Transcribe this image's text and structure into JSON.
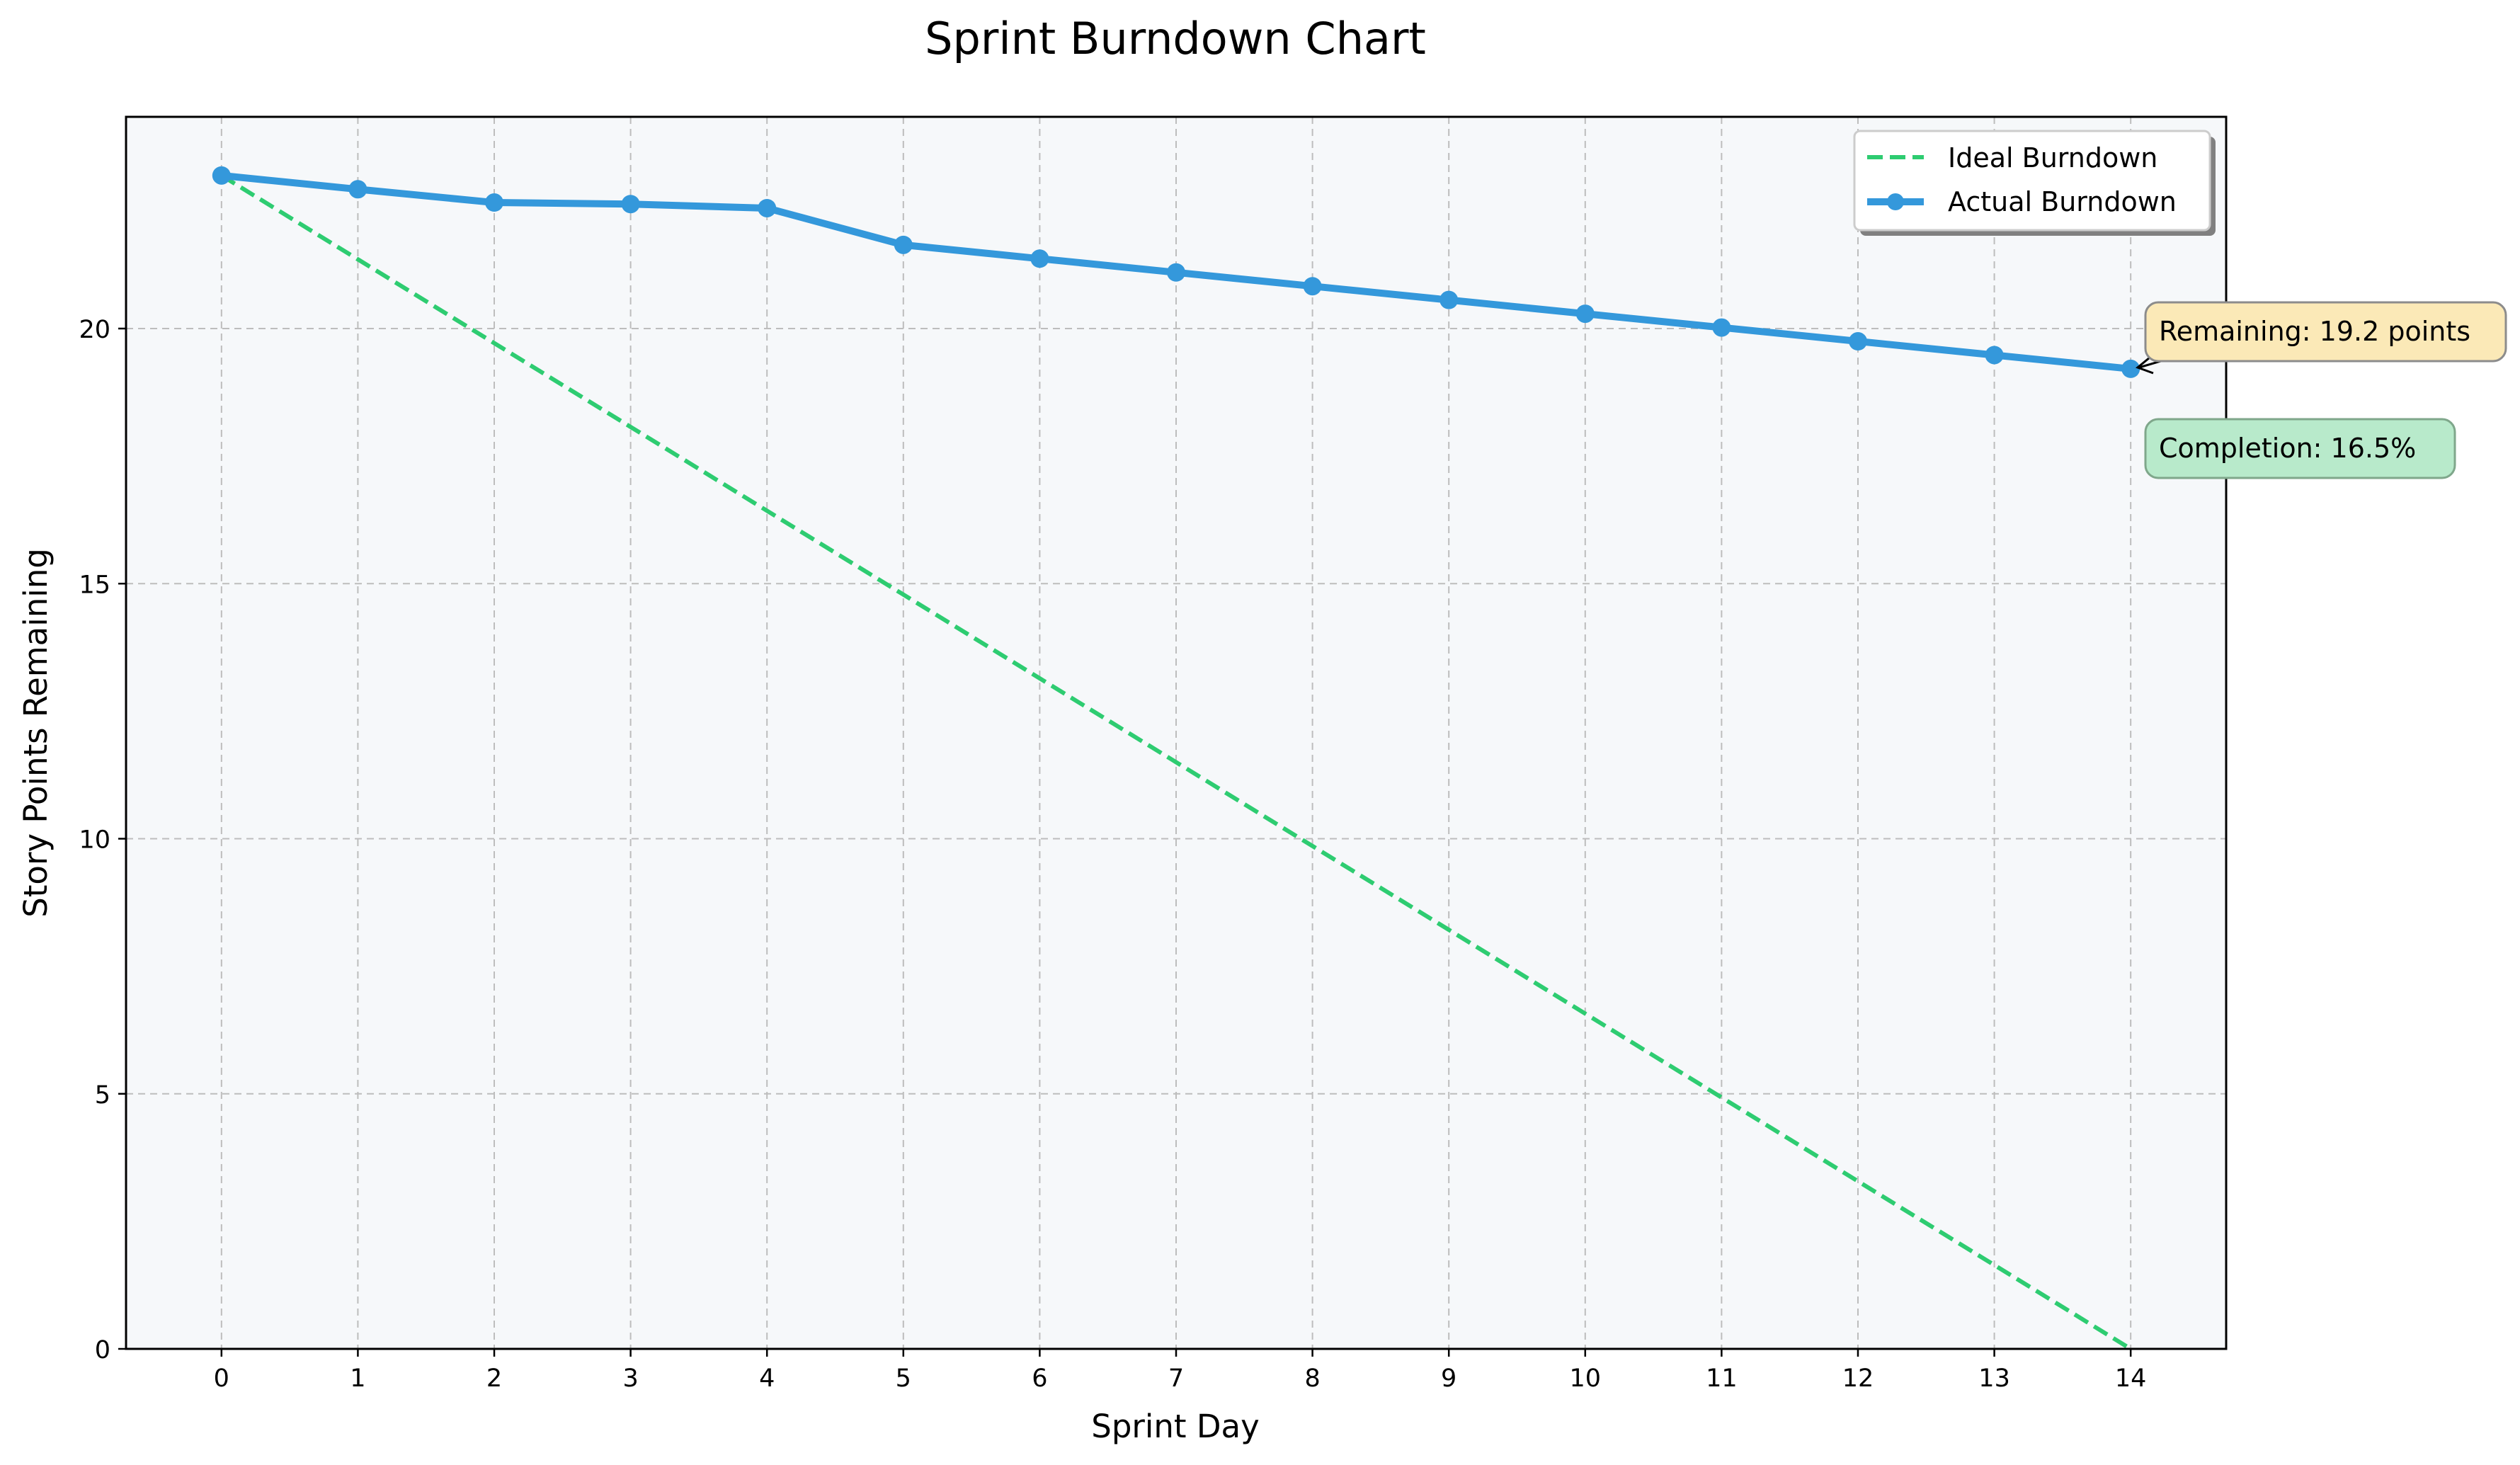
{
  "chart_data": {
    "type": "line",
    "title": "Sprint Burndown Chart",
    "xlabel": "Sprint Day",
    "ylabel": "Story Points Remaining",
    "xlim": [
      -0.7,
      14.7
    ],
    "ylim": [
      0,
      24.15
    ],
    "x_ticks": [
      0,
      1,
      2,
      3,
      4,
      5,
      6,
      7,
      8,
      9,
      10,
      11,
      12,
      13,
      14
    ],
    "y_ticks": [
      0,
      5,
      10,
      15,
      20
    ],
    "grid": true,
    "legend_position": "top-right",
    "series": [
      {
        "name": "Ideal Burndown",
        "style": "dashed",
        "color": "#2ecc71",
        "x": [
          0,
          14
        ],
        "values": [
          23,
          0
        ]
      },
      {
        "name": "Actual Burndown",
        "style": "solid-markers",
        "color": "#3498db",
        "x": [
          0,
          1,
          2,
          3,
          4,
          5,
          6,
          7,
          8,
          9,
          10,
          11,
          12,
          13,
          14
        ],
        "values": [
          23.0,
          22.73,
          22.47,
          22.44,
          22.36,
          21.64,
          21.37,
          21.1,
          20.83,
          20.56,
          20.29,
          20.02,
          19.75,
          19.48,
          19.21
        ]
      }
    ],
    "annotations": [
      {
        "name": "remaining",
        "text": "Remaining: 19.2 points",
        "fill": "#fbe9b7",
        "stroke": "#8c8c8c"
      },
      {
        "name": "completion",
        "text": "Completion: 16.5%",
        "fill": "#b8eacb",
        "stroke": "#7fa78b"
      }
    ]
  },
  "colors": {
    "plot_background": "#f6f8fa",
    "grid": "#bdbdbd",
    "axes": "#000000",
    "ideal": "#2ecc71",
    "actual": "#3498db"
  }
}
